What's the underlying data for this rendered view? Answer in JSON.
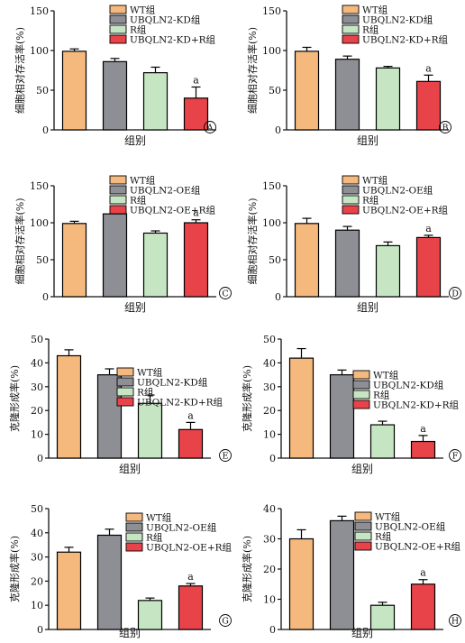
{
  "colors": {
    "WT": "#f5b97e",
    "KD_OE": "#8e8f95",
    "R": "#c6e6c3",
    "combo": "#e9434a",
    "axis": "#111111"
  },
  "chart_data": [
    {
      "panel": "A",
      "type": "bar",
      "ylabel": "细胞相对存活率(%)",
      "xlabel": "组别",
      "ylim": [
        0,
        150
      ],
      "yticks": [
        0,
        50,
        100,
        150
      ],
      "categories": [
        "WT组",
        "UBQLN2-KD组",
        "R组",
        "UBQLN2-KD+R组"
      ],
      "values": [
        99,
        86,
        72,
        40
      ],
      "errors": [
        3,
        4,
        7,
        14
      ],
      "annotations": [
        "",
        "",
        "",
        "a"
      ],
      "legend": [
        "WT组",
        "UBQLN2-KD组",
        "R组",
        "UBQLN2-KD+R组"
      ]
    },
    {
      "panel": "B",
      "type": "bar",
      "ylabel": "细胞相对存活率(%)",
      "xlabel": "组别",
      "ylim": [
        0,
        150
      ],
      "yticks": [
        0,
        50,
        100,
        150
      ],
      "categories": [
        "WT组",
        "UBQLN2-KD组",
        "R组",
        "UBQLN2-KD+R组"
      ],
      "values": [
        99,
        89,
        78,
        61
      ],
      "errors": [
        5,
        4,
        2,
        8
      ],
      "annotations": [
        "",
        "",
        "",
        "a"
      ],
      "legend": [
        "WT组",
        "UBQLN2-KD组",
        "R组",
        "UBQLN2-KD+R组"
      ]
    },
    {
      "panel": "C",
      "type": "bar",
      "ylabel": "细胞相对存活率(%)",
      "xlabel": "组别",
      "ylim": [
        0,
        150
      ],
      "yticks": [
        0,
        50,
        100,
        150
      ],
      "categories": [
        "WT组",
        "UBQLN2-OE组",
        "R组",
        "UBQLN2-OE+R组"
      ],
      "values": [
        99,
        112,
        86,
        100
      ],
      "errors": [
        3,
        3,
        3,
        4
      ],
      "annotations": [
        "",
        "",
        "",
        "a"
      ],
      "legend": [
        "WT组",
        "UBQLN2-OE组",
        "R组",
        "UBQLN2-OE+R组"
      ]
    },
    {
      "panel": "D",
      "type": "bar",
      "ylabel": "细胞相对存活率(%)",
      "xlabel": "组别",
      "ylim": [
        0,
        150
      ],
      "yticks": [
        0,
        50,
        100,
        150
      ],
      "categories": [
        "WT组",
        "UBQLN2-OE组",
        "R组",
        "UBQLN2-OE+R组"
      ],
      "values": [
        99,
        90,
        69,
        80
      ],
      "errors": [
        7,
        5,
        5,
        3
      ],
      "annotations": [
        "",
        "",
        "",
        "a"
      ],
      "legend": [
        "WT组",
        "UBQLN2-OE组",
        "R组",
        "UBQLN2-OE+R组"
      ]
    },
    {
      "panel": "E",
      "type": "bar",
      "ylabel": "克隆形成率(%)",
      "xlabel": "组别",
      "ylim": [
        0,
        50
      ],
      "yticks": [
        0,
        10,
        20,
        30,
        40,
        50
      ],
      "categories": [
        "WT组",
        "UBQLN2-KD组",
        "R组",
        "UBQLN2-KD+R组"
      ],
      "values": [
        43,
        35,
        23,
        12
      ],
      "errors": [
        2.5,
        2.5,
        3.5,
        3
      ],
      "annotations": [
        "",
        "",
        "",
        "a"
      ],
      "legend": [
        "WT组",
        "UBQLN2-KD组",
        "R组",
        "UBQLN2-KD+R组"
      ]
    },
    {
      "panel": "F",
      "type": "bar",
      "ylabel": "克隆形成率(%)",
      "xlabel": "组别",
      "ylim": [
        0,
        50
      ],
      "yticks": [
        0,
        10,
        20,
        30,
        40,
        50
      ],
      "categories": [
        "WT组",
        "UBQLN2-KD组",
        "R组",
        "UBQLN2-KD+R组"
      ],
      "values": [
        42,
        35,
        14,
        7
      ],
      "errors": [
        4,
        2,
        1.5,
        2.5
      ],
      "annotations": [
        "",
        "",
        "",
        "a"
      ],
      "legend": [
        "WT组",
        "UBQLN2-KD组",
        "R组",
        "UBQLN2-KD+R组"
      ]
    },
    {
      "panel": "G",
      "type": "bar",
      "ylabel": "克隆形成率(%)",
      "xlabel": "组别",
      "ylim": [
        0,
        50
      ],
      "yticks": [
        0,
        10,
        20,
        30,
        40,
        50
      ],
      "categories": [
        "WT组",
        "UBQLN2-OE组",
        "R组",
        "UBQLN2-OE+R组"
      ],
      "values": [
        32,
        39,
        12,
        18
      ],
      "errors": [
        2,
        2.5,
        1,
        1
      ],
      "annotations": [
        "",
        "",
        "",
        "a"
      ],
      "legend": [
        "WT组",
        "UBQLN2-OE组",
        "R组",
        "UBQLN2-OE+R组"
      ]
    },
    {
      "panel": "H",
      "type": "bar",
      "ylabel": "克隆形成率(%)",
      "xlabel": "组别",
      "ylim": [
        0,
        40
      ],
      "yticks": [
        0,
        10,
        20,
        30,
        40
      ],
      "categories": [
        "WT组",
        "UBQLN2-OE组",
        "R组",
        "UBQLN2-OE+R组"
      ],
      "values": [
        30,
        36,
        8,
        15
      ],
      "errors": [
        3,
        1.5,
        1,
        1.5
      ],
      "annotations": [
        "",
        "",
        "",
        "a"
      ],
      "legend": [
        "WT组",
        "UBQLN2-OE组",
        "R组",
        "UBQLN2-OE+R组"
      ]
    }
  ]
}
